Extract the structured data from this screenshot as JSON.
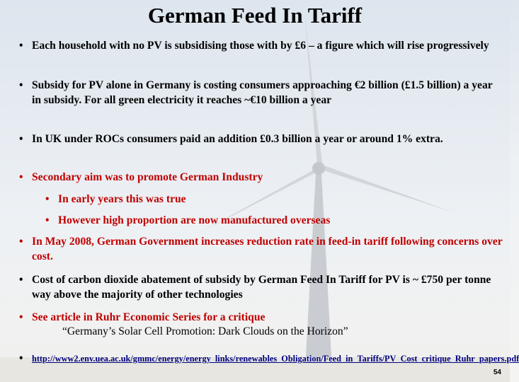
{
  "slide": {
    "title": "German Feed In Tariff",
    "bullet_symbol": "•",
    "bullets": [
      {
        "text": "Each household with no PV is subsidising those with by £6 – a figure which will rise progressively"
      },
      {
        "text": "Subsidy for PV alone in Germany is costing consumers approaching €2 billion (£1.5 billion) a  year in subsidy.  For all green electricity it reaches ~€10 billion a year"
      },
      {
        "text": "In UK under ROCs consumers paid an addition £0.3 billion a year or around 1% extra."
      },
      {
        "text": "Secondary aim was to promote German Industry"
      },
      {
        "text": "In early years this was true"
      },
      {
        "text": "However high proportion are now manufactured overseas"
      },
      {
        "text": "In May 2008,  German Government increases reduction rate in feed-in tariff following concerns over cost."
      },
      {
        "text": "Cost of carbon dioxide abatement of subsidy by German Feed In Tariff for PV is ~ £750 per tonne way above the majority of other technologies"
      },
      {
        "text": "See  article in Ruhr Economic Series for a critique"
      }
    ],
    "quote": "“Germany’s Solar Cell Promotion:  Dark Clouds on the Horizon”",
    "link_text": "http://www2.env.uea.ac.uk/gmmc/energy/energy_links/renewables_Obligation/Feed_in_Tariffs/PV_Cost_critique_Ruhr_papers.pdf",
    "page_number": "54",
    "colors": {
      "accent_red": "#c00000",
      "link": "#000080"
    }
  }
}
